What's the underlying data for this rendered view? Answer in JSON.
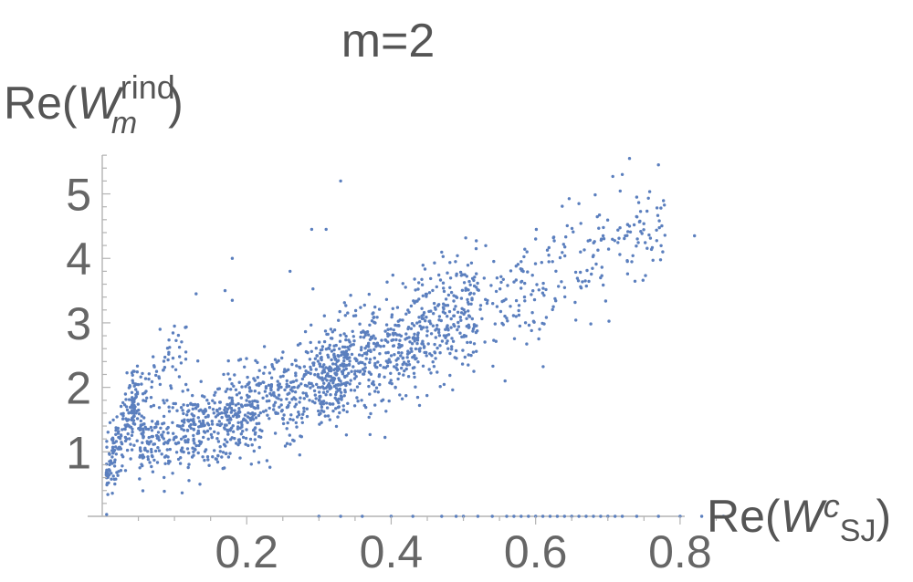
{
  "chart_data": {
    "type": "scatter",
    "title": "m=2",
    "ylabel": {
      "base": "Re(",
      "symbol": "W",
      "sup": "rind",
      "sub": "m",
      "close": ")"
    },
    "xlabel": {
      "base": "Re(",
      "symbol": "W",
      "sup": "c",
      "sub": "SJ",
      "close": ")"
    },
    "xlim": [
      0,
      0.9
    ],
    "ylim": [
      0,
      5.8
    ],
    "xticks": [
      "0.2",
      "0.4",
      "0.6",
      "0.8"
    ],
    "yticks": [
      "1",
      "2",
      "3",
      "4",
      "5"
    ],
    "point_color": "#5b7fbe",
    "main_cloud": {
      "count": 1900,
      "x_range": [
        0.005,
        0.78
      ],
      "note_points_follow_trend": true
    },
    "outliers": [
      {
        "x": 0.33,
        "y": 5.2
      },
      {
        "x": 0.73,
        "y": 5.55
      },
      {
        "x": 0.77,
        "y": 5.45
      },
      {
        "x": 0.82,
        "y": 4.35
      },
      {
        "x": 0.72,
        "y": 5.3
      },
      {
        "x": 0.74,
        "y": 4.95
      },
      {
        "x": 0.73,
        "y": 4.5
      },
      {
        "x": 0.66,
        "y": 4.85
      },
      {
        "x": 0.29,
        "y": 4.45
      },
      {
        "x": 0.31,
        "y": 4.45
      },
      {
        "x": 0.18,
        "y": 4.0
      },
      {
        "x": 0.17,
        "y": 3.5
      },
      {
        "x": 0.13,
        "y": 3.45
      },
      {
        "x": 0.18,
        "y": 3.35
      },
      {
        "x": 0.26,
        "y": 3.8
      },
      {
        "x": 0.08,
        "y": 2.9
      },
      {
        "x": 0.1,
        "y": 2.95
      },
      {
        "x": 0.58,
        "y": 3.95
      },
      {
        "x": 0.6,
        "y": 4.3
      }
    ],
    "zero_points_x": [
      0.3,
      0.33,
      0.36,
      0.4,
      0.43,
      0.47,
      0.49,
      0.5,
      0.52,
      0.54,
      0.56,
      0.57,
      0.58,
      0.59,
      0.6,
      0.61,
      0.62,
      0.63,
      0.64,
      0.65,
      0.66,
      0.67,
      0.68,
      0.69,
      0.7,
      0.71,
      0.72,
      0.74,
      0.77,
      0.8,
      0.83,
      0.86
    ]
  }
}
